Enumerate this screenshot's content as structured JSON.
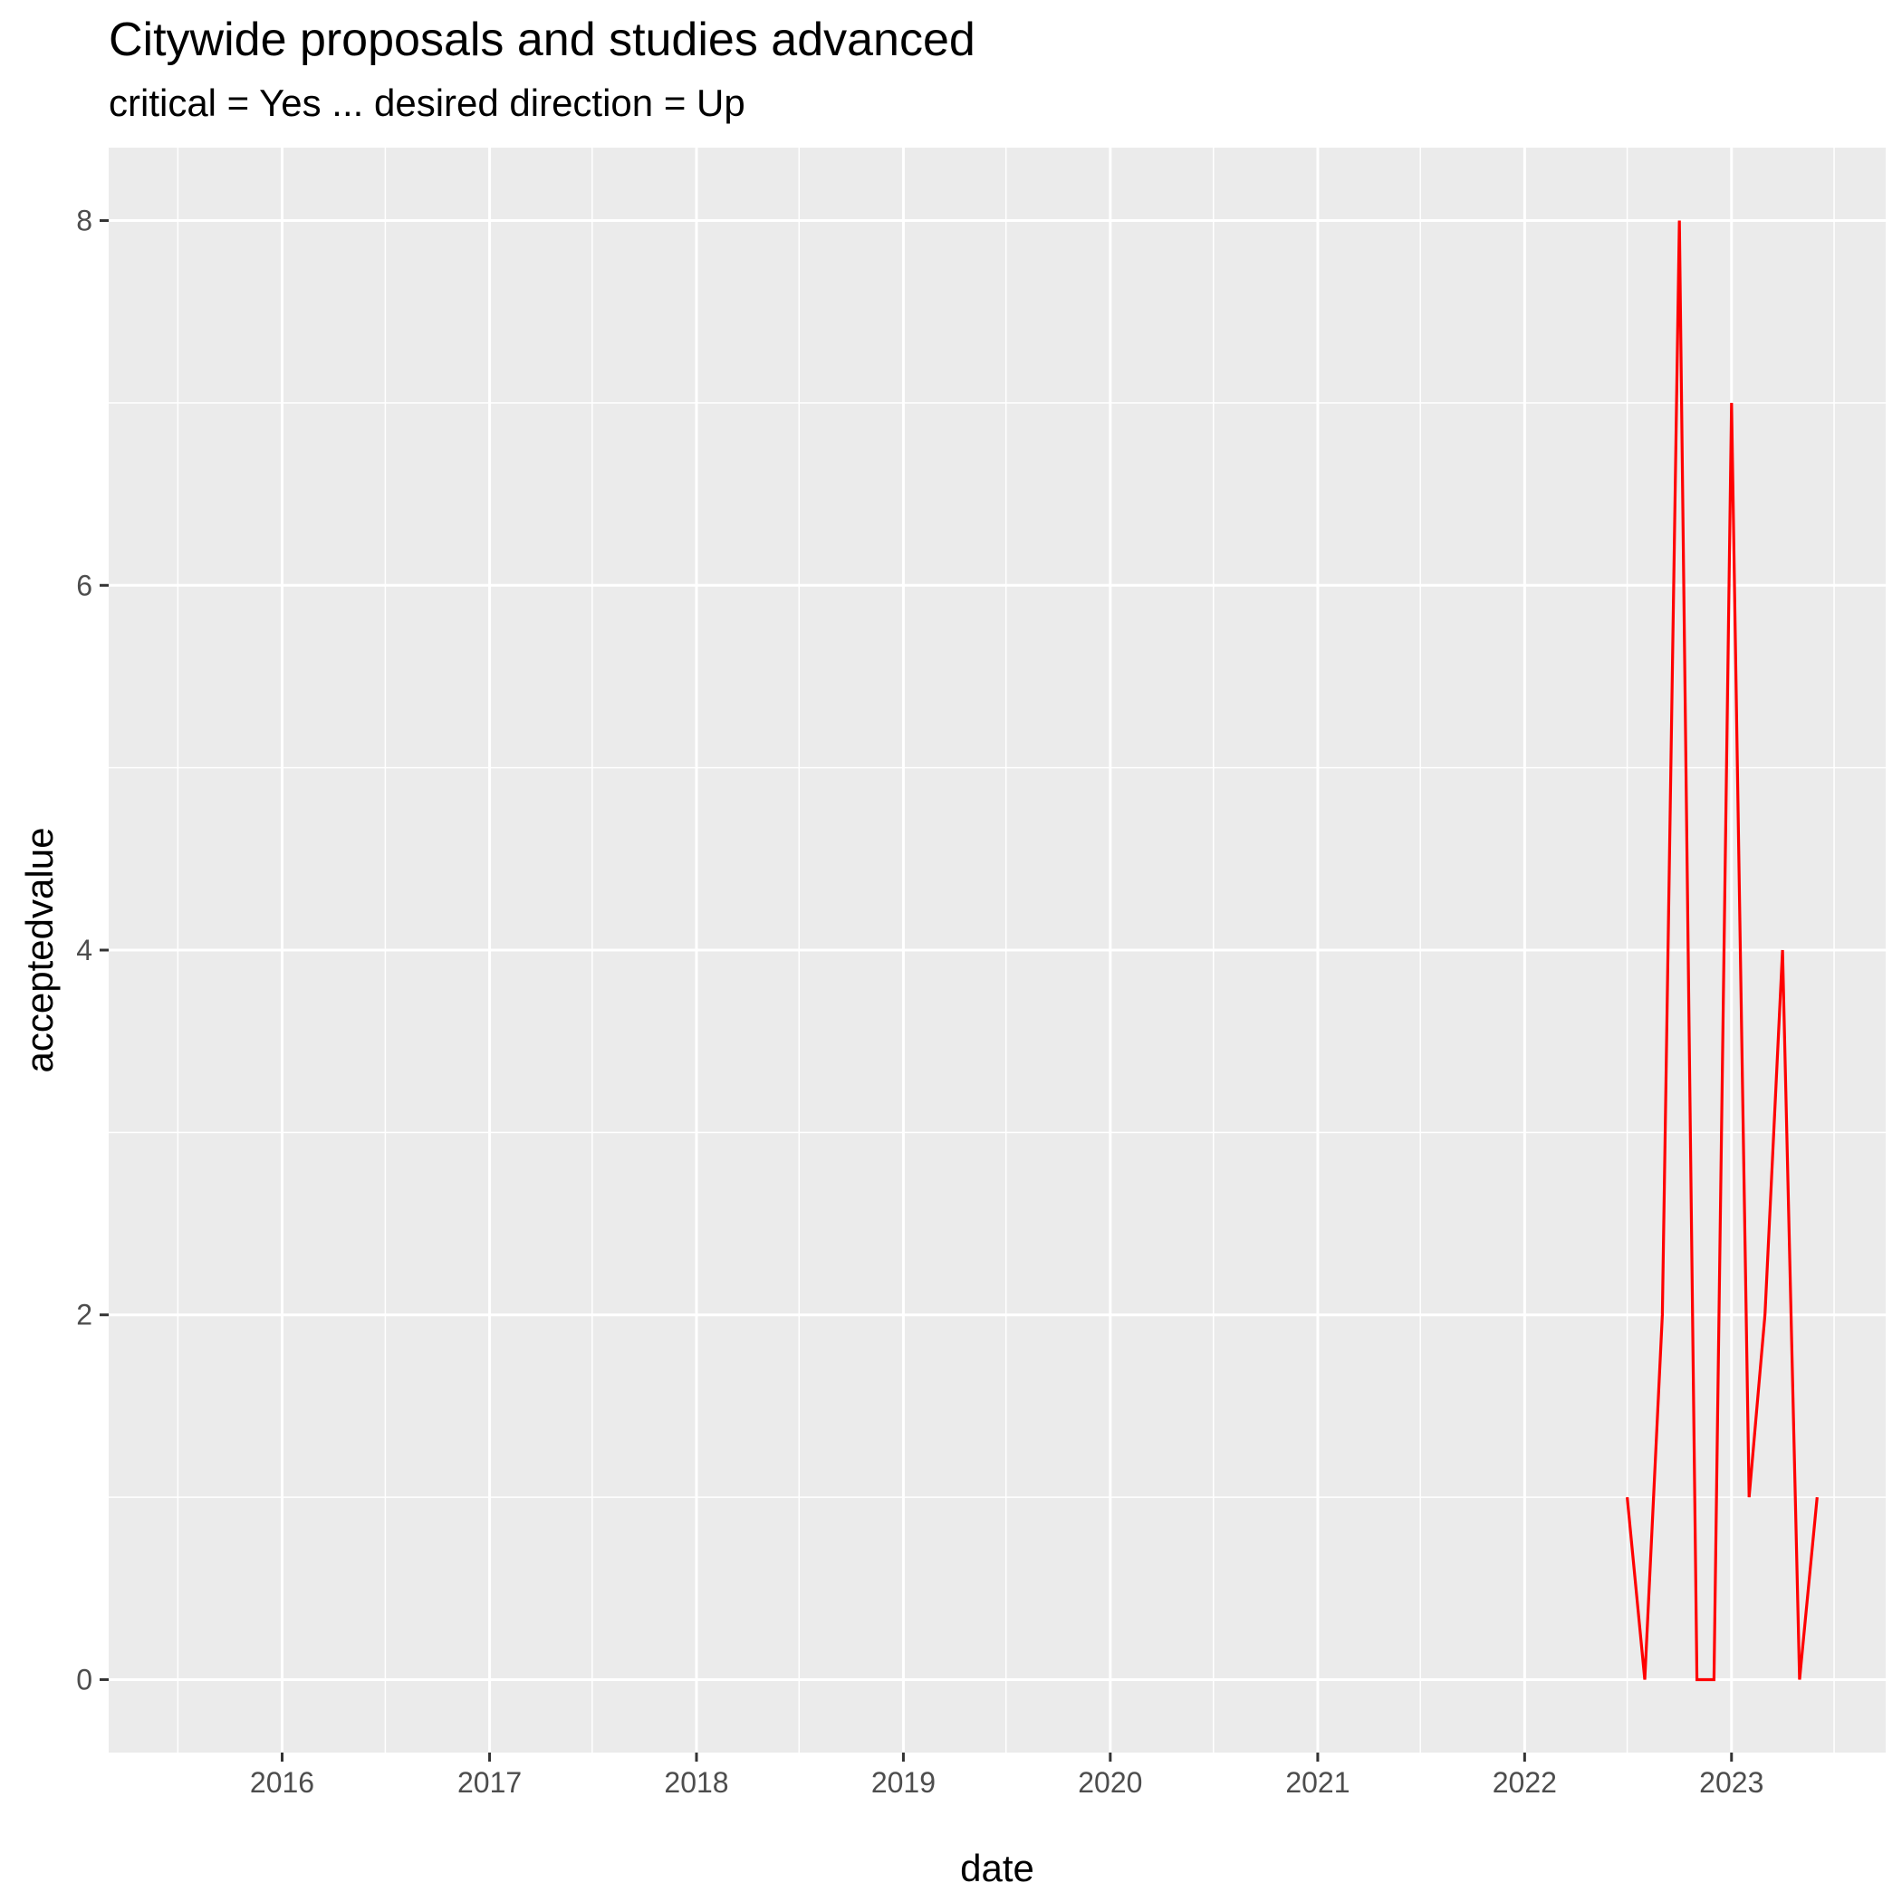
{
  "chart_data": {
    "type": "line",
    "title": "Citywide proposals and studies advanced",
    "subtitle": "critical = Yes ... desired direction = Up",
    "xlabel": "date",
    "ylabel": "acceptedvalue",
    "x_ticks": [
      "2016",
      "2017",
      "2018",
      "2019",
      "2020",
      "2021",
      "2022",
      "2023"
    ],
    "y_ticks": [
      "0",
      "2",
      "4",
      "6",
      "8"
    ],
    "xlim": [
      "2015-03-01",
      "2023-09-30"
    ],
    "ylim": [
      -0.4,
      8.4
    ],
    "grid": true,
    "series": [
      {
        "color": "#ff0000",
        "points": [
          {
            "x": "2022-07-01",
            "y": 1
          },
          {
            "x": "2022-08-01",
            "y": 0
          },
          {
            "x": "2022-09-01",
            "y": 2
          },
          {
            "x": "2022-10-01",
            "y": 8
          },
          {
            "x": "2022-11-01",
            "y": 0
          },
          {
            "x": "2022-12-01",
            "y": 0
          },
          {
            "x": "2023-01-01",
            "y": 7
          },
          {
            "x": "2023-02-01",
            "y": 1
          },
          {
            "x": "2023-03-01",
            "y": 2
          },
          {
            "x": "2023-04-01",
            "y": 4
          },
          {
            "x": "2023-05-01",
            "y": 0
          },
          {
            "x": "2023-06-01",
            "y": 1
          }
        ]
      }
    ]
  }
}
